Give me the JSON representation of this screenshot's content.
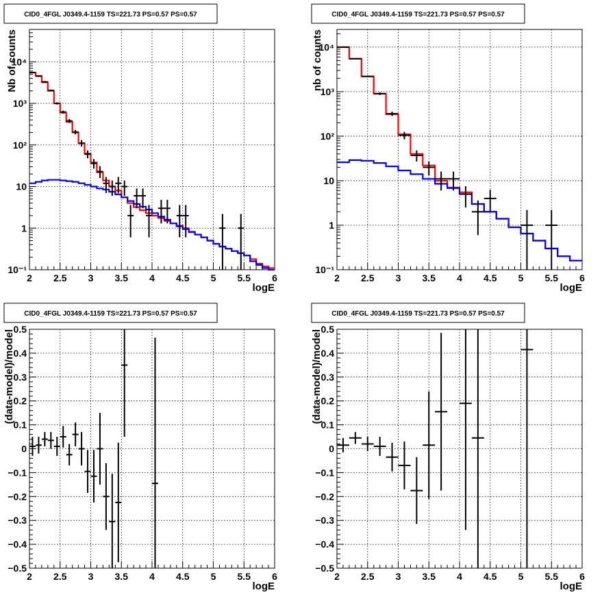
{
  "chart_data": [
    {
      "panel": "top-left",
      "type": "histogram-errorbars",
      "title": "CID0_4FGL J0349.4-1159 TS=221.73 PS=0.57 PS=0.57",
      "xlabel": "logE",
      "ylabel": "Nb of counts",
      "xlim": [
        2,
        6
      ],
      "ylim": [
        0.1,
        60000
      ],
      "yscale": "log",
      "grid": true,
      "x_ticks": [
        "2",
        "2.5",
        "3",
        "3.5",
        "4",
        "4.5",
        "5",
        "5.5",
        "6"
      ],
      "y_ticks": [
        "10⁻¹",
        "1",
        "10",
        "10²",
        "10³",
        "10⁴"
      ],
      "y_tick_values": [
        0.1,
        1,
        10,
        100,
        1000,
        10000
      ],
      "bin_edges": [
        2.0,
        2.1,
        2.2,
        2.3,
        2.4,
        2.5,
        2.6,
        2.7,
        2.8,
        2.9,
        3.0,
        3.1,
        3.2,
        3.3,
        3.4,
        3.5,
        3.6,
        3.7,
        3.8,
        3.9,
        4.0,
        4.1,
        4.2,
        4.3,
        4.4,
        4.5,
        4.6,
        4.7,
        4.8,
        4.9,
        5.0,
        5.1,
        5.2,
        5.3,
        5.4,
        5.5,
        5.6,
        5.7,
        5.8,
        5.9,
        6.0
      ],
      "series": [
        {
          "role": "total-model",
          "color": "#ff0000",
          "values": [
            5500,
            4600,
            3200,
            2000,
            1000,
            600,
            360,
            200,
            110,
            62,
            38,
            22,
            14,
            10,
            8,
            5.5,
            4,
            3.2,
            2.7,
            2.3,
            2.0,
            1.75,
            1.5,
            1.3,
            1.15,
            1.0,
            0.82,
            0.7,
            0.6,
            0.5,
            0.42,
            0.36,
            0.32,
            0.28,
            0.25,
            0.22,
            0.18,
            0.14,
            0.12,
            0.11
          ]
        },
        {
          "role": "background-model",
          "color": "#0000ff",
          "values": [
            12,
            13,
            14,
            14.5,
            14.5,
            14,
            13.5,
            13,
            12,
            11,
            10,
            9,
            8.5,
            7.5,
            6.5,
            5.5,
            4.5,
            3.8,
            3.3,
            2.8,
            2.3,
            1.9,
            1.6,
            1.3,
            1.1,
            0.95,
            0.8,
            0.7,
            0.6,
            0.5,
            0.42,
            0.36,
            0.32,
            0.28,
            0.25,
            0.22,
            0.16,
            0.13,
            0.11,
            0.1
          ]
        },
        {
          "role": "data",
          "color": "#000000",
          "points": [
            {
              "x": 2.05,
              "y": 5500,
              "lo": 5300,
              "hi": 5700
            },
            {
              "x": 2.15,
              "y": 4500,
              "lo": 4350,
              "hi": 4650
            },
            {
              "x": 2.25,
              "y": 3300,
              "lo": 3150,
              "hi": 3450
            },
            {
              "x": 2.35,
              "y": 2050,
              "lo": 1950,
              "hi": 2150
            },
            {
              "x": 2.45,
              "y": 1000,
              "lo": 940,
              "hi": 1060
            },
            {
              "x": 2.55,
              "y": 620,
              "lo": 570,
              "hi": 670
            },
            {
              "x": 2.65,
              "y": 380,
              "lo": 340,
              "hi": 420
            },
            {
              "x": 2.75,
              "y": 205,
              "lo": 180,
              "hi": 230
            },
            {
              "x": 2.85,
              "y": 110,
              "lo": 92,
              "hi": 130
            },
            {
              "x": 2.95,
              "y": 60,
              "lo": 48,
              "hi": 74
            },
            {
              "x": 3.05,
              "y": 36,
              "lo": 27,
              "hi": 46
            },
            {
              "x": 3.15,
              "y": 23,
              "lo": 16,
              "hi": 31
            },
            {
              "x": 3.25,
              "y": 12,
              "lo": 7,
              "hi": 17
            },
            {
              "x": 3.35,
              "y": 10,
              "lo": 6,
              "hi": 14
            },
            {
              "x": 3.45,
              "y": 12,
              "lo": 7,
              "hi": 17
            },
            {
              "x": 3.55,
              "y": 10,
              "lo": 6,
              "hi": 14
            },
            {
              "x": 3.65,
              "y": 2,
              "lo": 0.6,
              "hi": 3.6
            },
            {
              "x": 3.75,
              "y": 6,
              "lo": 3,
              "hi": 9
            },
            {
              "x": 3.85,
              "y": 6,
              "lo": 3,
              "hi": 9
            },
            {
              "x": 3.95,
              "y": 2,
              "lo": 0.6,
              "hi": 3.6
            },
            {
              "x": 4.15,
              "y": 3,
              "lo": 1.3,
              "hi": 4.8
            },
            {
              "x": 4.25,
              "y": 3,
              "lo": 1.3,
              "hi": 4.8
            },
            {
              "x": 4.45,
              "y": 2,
              "lo": 0.6,
              "hi": 3.6
            },
            {
              "x": 4.55,
              "y": 2,
              "lo": 0.6,
              "hi": 3.6
            },
            {
              "x": 5.15,
              "y": 1,
              "lo": 0.1,
              "hi": 2.2
            },
            {
              "x": 5.45,
              "y": 1,
              "lo": 0.1,
              "hi": 2.2
            }
          ]
        }
      ]
    },
    {
      "panel": "top-right",
      "type": "histogram-errorbars",
      "title": "CID0_4FGL J0349.4-1159 TS=221.73 PS=0.57 PS=0.57",
      "xlabel": "logE",
      "ylabel": "nb of counts",
      "xlim": [
        2,
        6
      ],
      "ylim": [
        0.1,
        25000
      ],
      "yscale": "log",
      "grid": true,
      "x_ticks": [
        "2",
        "2.5",
        "3",
        "3.5",
        "4",
        "4.5",
        "5",
        "5.5",
        "6"
      ],
      "y_ticks": [
        "10⁻¹",
        "1",
        "10",
        "10²",
        "10³",
        "10⁴"
      ],
      "y_tick_values": [
        0.1,
        1,
        10,
        100,
        1000,
        10000
      ],
      "bin_edges": [
        2.0,
        2.2,
        2.4,
        2.6,
        2.8,
        3.0,
        3.2,
        3.4,
        3.6,
        3.8,
        4.0,
        4.2,
        4.4,
        4.6,
        4.8,
        5.0,
        5.2,
        5.4,
        5.6,
        5.8,
        6.0
      ],
      "series": [
        {
          "role": "total-model",
          "color": "#ff0000",
          "values": [
            10000,
            5500,
            2200,
            900,
            310,
            110,
            40,
            22,
            10,
            7,
            5.5,
            3,
            2,
            1.4,
            0.9,
            0.65,
            0.45,
            0.3,
            0.2,
            0.16
          ]
        },
        {
          "role": "background-model",
          "color": "#0000ff",
          "values": [
            26,
            29,
            28,
            25,
            21,
            17,
            14,
            11,
            8.5,
            6.8,
            5,
            3,
            2,
            1.4,
            0.9,
            0.65,
            0.45,
            0.3,
            0.2,
            0.16
          ]
        },
        {
          "role": "data",
          "color": "#000000",
          "points": [
            {
              "x": 2.1,
              "y": 10000,
              "lo": 9800,
              "hi": 10200
            },
            {
              "x": 2.3,
              "y": 5500,
              "lo": 5350,
              "hi": 5650
            },
            {
              "x": 2.5,
              "y": 2200,
              "lo": 2100,
              "hi": 2300
            },
            {
              "x": 2.7,
              "y": 900,
              "lo": 840,
              "hi": 960
            },
            {
              "x": 2.9,
              "y": 320,
              "lo": 285,
              "hi": 355
            },
            {
              "x": 3.1,
              "y": 105,
              "lo": 85,
              "hi": 125
            },
            {
              "x": 3.3,
              "y": 37,
              "lo": 27,
              "hi": 48
            },
            {
              "x": 3.5,
              "y": 20,
              "lo": 13,
              "hi": 27
            },
            {
              "x": 3.7,
              "y": 11,
              "lo": 6,
              "hi": 16
            },
            {
              "x": 3.9,
              "y": 11,
              "lo": 6,
              "hi": 16
            },
            {
              "x": 4.1,
              "y": 5,
              "lo": 2.5,
              "hi": 7.5
            },
            {
              "x": 4.3,
              "y": 2,
              "lo": 0.6,
              "hi": 3.6
            },
            {
              "x": 4.5,
              "y": 4,
              "lo": 2,
              "hi": 6.2
            },
            {
              "x": 5.1,
              "y": 1,
              "lo": 0.1,
              "hi": 2.2
            },
            {
              "x": 5.5,
              "y": 1,
              "lo": 0.1,
              "hi": 2.2
            }
          ]
        }
      ]
    },
    {
      "panel": "bottom-left",
      "type": "scatter-errorbars",
      "title": "CID0_4FGL J0349.4-1159 TS=221.73 PS=0.57 PS=0.57",
      "xlabel": "logE",
      "ylabel": "(data-model)/model",
      "xlim": [
        2,
        6
      ],
      "ylim": [
        -0.5,
        0.5
      ],
      "grid": true,
      "x_ticks": [
        "2",
        "2.5",
        "3",
        "3.5",
        "4",
        "4.5",
        "5",
        "5.5",
        "6"
      ],
      "y_ticks": [
        "−0.5",
        "−0.4",
        "−0.3",
        "−0.2",
        "−0.1",
        "0",
        "0.1",
        "0.2",
        "0.3",
        "0.4",
        "0.5"
      ],
      "y_tick_values": [
        -0.5,
        -0.4,
        -0.3,
        -0.2,
        -0.1,
        0,
        0.1,
        0.2,
        0.3,
        0.4,
        0.5
      ],
      "series": [
        {
          "role": "residuals",
          "color": "#000000",
          "points": [
            {
              "x": 2.05,
              "y": 0.01,
              "err": 0.04
            },
            {
              "x": 2.15,
              "y": 0.015,
              "err": 0.035
            },
            {
              "x": 2.25,
              "y": 0.04,
              "err": 0.03
            },
            {
              "x": 2.35,
              "y": 0.035,
              "err": 0.035
            },
            {
              "x": 2.45,
              "y": 0.01,
              "err": 0.04
            },
            {
              "x": 2.55,
              "y": 0.05,
              "err": 0.045
            },
            {
              "x": 2.65,
              "y": -0.025,
              "err": 0.045
            },
            {
              "x": 2.75,
              "y": 0.06,
              "err": 0.05
            },
            {
              "x": 2.85,
              "y": 0.0,
              "err": 0.07
            },
            {
              "x": 2.95,
              "y": -0.095,
              "err": 0.09
            },
            {
              "x": 3.05,
              "y": -0.115,
              "err": 0.11
            },
            {
              "x": 3.15,
              "y": 0.0,
              "err": 0.15
            },
            {
              "x": 3.25,
              "y": -0.2,
              "err": 0.14
            },
            {
              "x": 3.35,
              "y": -0.305,
              "err": 0.2
            },
            {
              "x": 3.45,
              "y": -0.225,
              "err": 0.25
            },
            {
              "x": 3.55,
              "y": 0.35,
              "err": 0.3
            },
            {
              "x": 4.05,
              "y": -0.145,
              "err": 0.61
            }
          ]
        }
      ]
    },
    {
      "panel": "bottom-right",
      "type": "scatter-errorbars",
      "title": "CID0_4FGL J0349.4-1159 TS=221.73 PS=0.57 PS=0.57",
      "xlabel": "logE",
      "ylabel": "(data-model)/model",
      "xlim": [
        2,
        6
      ],
      "ylim": [
        -0.5,
        0.5
      ],
      "grid": true,
      "x_ticks": [
        "2",
        "2.5",
        "3",
        "3.5",
        "4",
        "4.5",
        "5",
        "5.5",
        "6"
      ],
      "y_ticks": [
        "−0.5",
        "−0.4",
        "−0.3",
        "−0.2",
        "−0.1",
        "0",
        "0.1",
        "0.2",
        "0.3",
        "0.4",
        "0.5"
      ],
      "y_tick_values": [
        -0.5,
        -0.4,
        -0.3,
        -0.2,
        -0.1,
        0,
        0.1,
        0.2,
        0.3,
        0.4,
        0.5
      ],
      "series": [
        {
          "role": "residuals",
          "color": "#000000",
          "points": [
            {
              "x": 2.1,
              "y": 0.015,
              "err": 0.03
            },
            {
              "x": 2.3,
              "y": 0.045,
              "err": 0.025
            },
            {
              "x": 2.5,
              "y": 0.02,
              "err": 0.03
            },
            {
              "x": 2.7,
              "y": 0.01,
              "err": 0.04
            },
            {
              "x": 2.9,
              "y": -0.035,
              "err": 0.06
            },
            {
              "x": 3.1,
              "y": -0.07,
              "err": 0.1
            },
            {
              "x": 3.3,
              "y": -0.175,
              "err": 0.14
            },
            {
              "x": 3.5,
              "y": 0.015,
              "err": 0.225
            },
            {
              "x": 3.7,
              "y": 0.155,
              "err": 0.33
            },
            {
              "x": 4.1,
              "y": 0.19,
              "err": 0.53
            },
            {
              "x": 4.3,
              "y": 0.045,
              "err": 0.6
            },
            {
              "x": 5.1,
              "y": 0.415,
              "err": 0.95
            }
          ]
        }
      ]
    }
  ]
}
